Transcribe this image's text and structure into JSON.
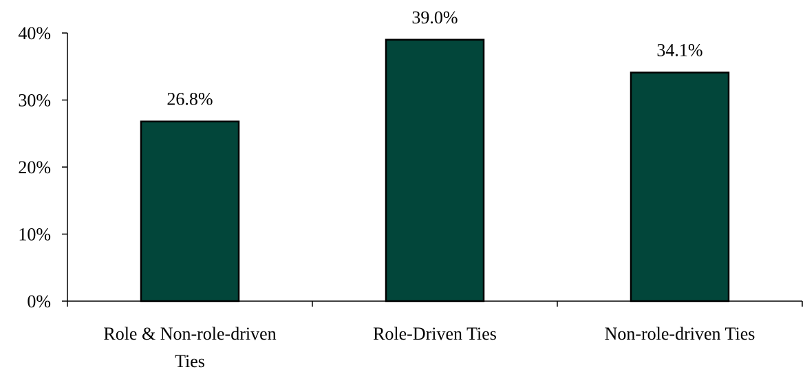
{
  "chart_data": {
    "type": "bar",
    "title": "",
    "xlabel": "",
    "ylabel": "",
    "categories": [
      "Role & Non-role-driven Ties",
      "Role-Driven Ties",
      "Non-role-driven Ties"
    ],
    "category_lines": [
      [
        "Role & Non-role-driven",
        "Ties"
      ],
      [
        "Role-Driven Ties"
      ],
      [
        "Non-role-driven Ties"
      ]
    ],
    "values": [
      26.8,
      39.0,
      34.1
    ],
    "data_labels": [
      "26.8%",
      "39.0%",
      "34.1%"
    ],
    "ylim": [
      0,
      40
    ],
    "yticks": [
      0,
      10,
      20,
      30,
      40
    ],
    "ytick_labels": [
      "0%",
      "10%",
      "20%",
      "30%",
      "40%"
    ],
    "grid": false,
    "legend": "none",
    "colors": {
      "bar_fill": "#02463a",
      "bar_stroke": "#000000",
      "axis": "#000000",
      "text": "#000000"
    }
  }
}
